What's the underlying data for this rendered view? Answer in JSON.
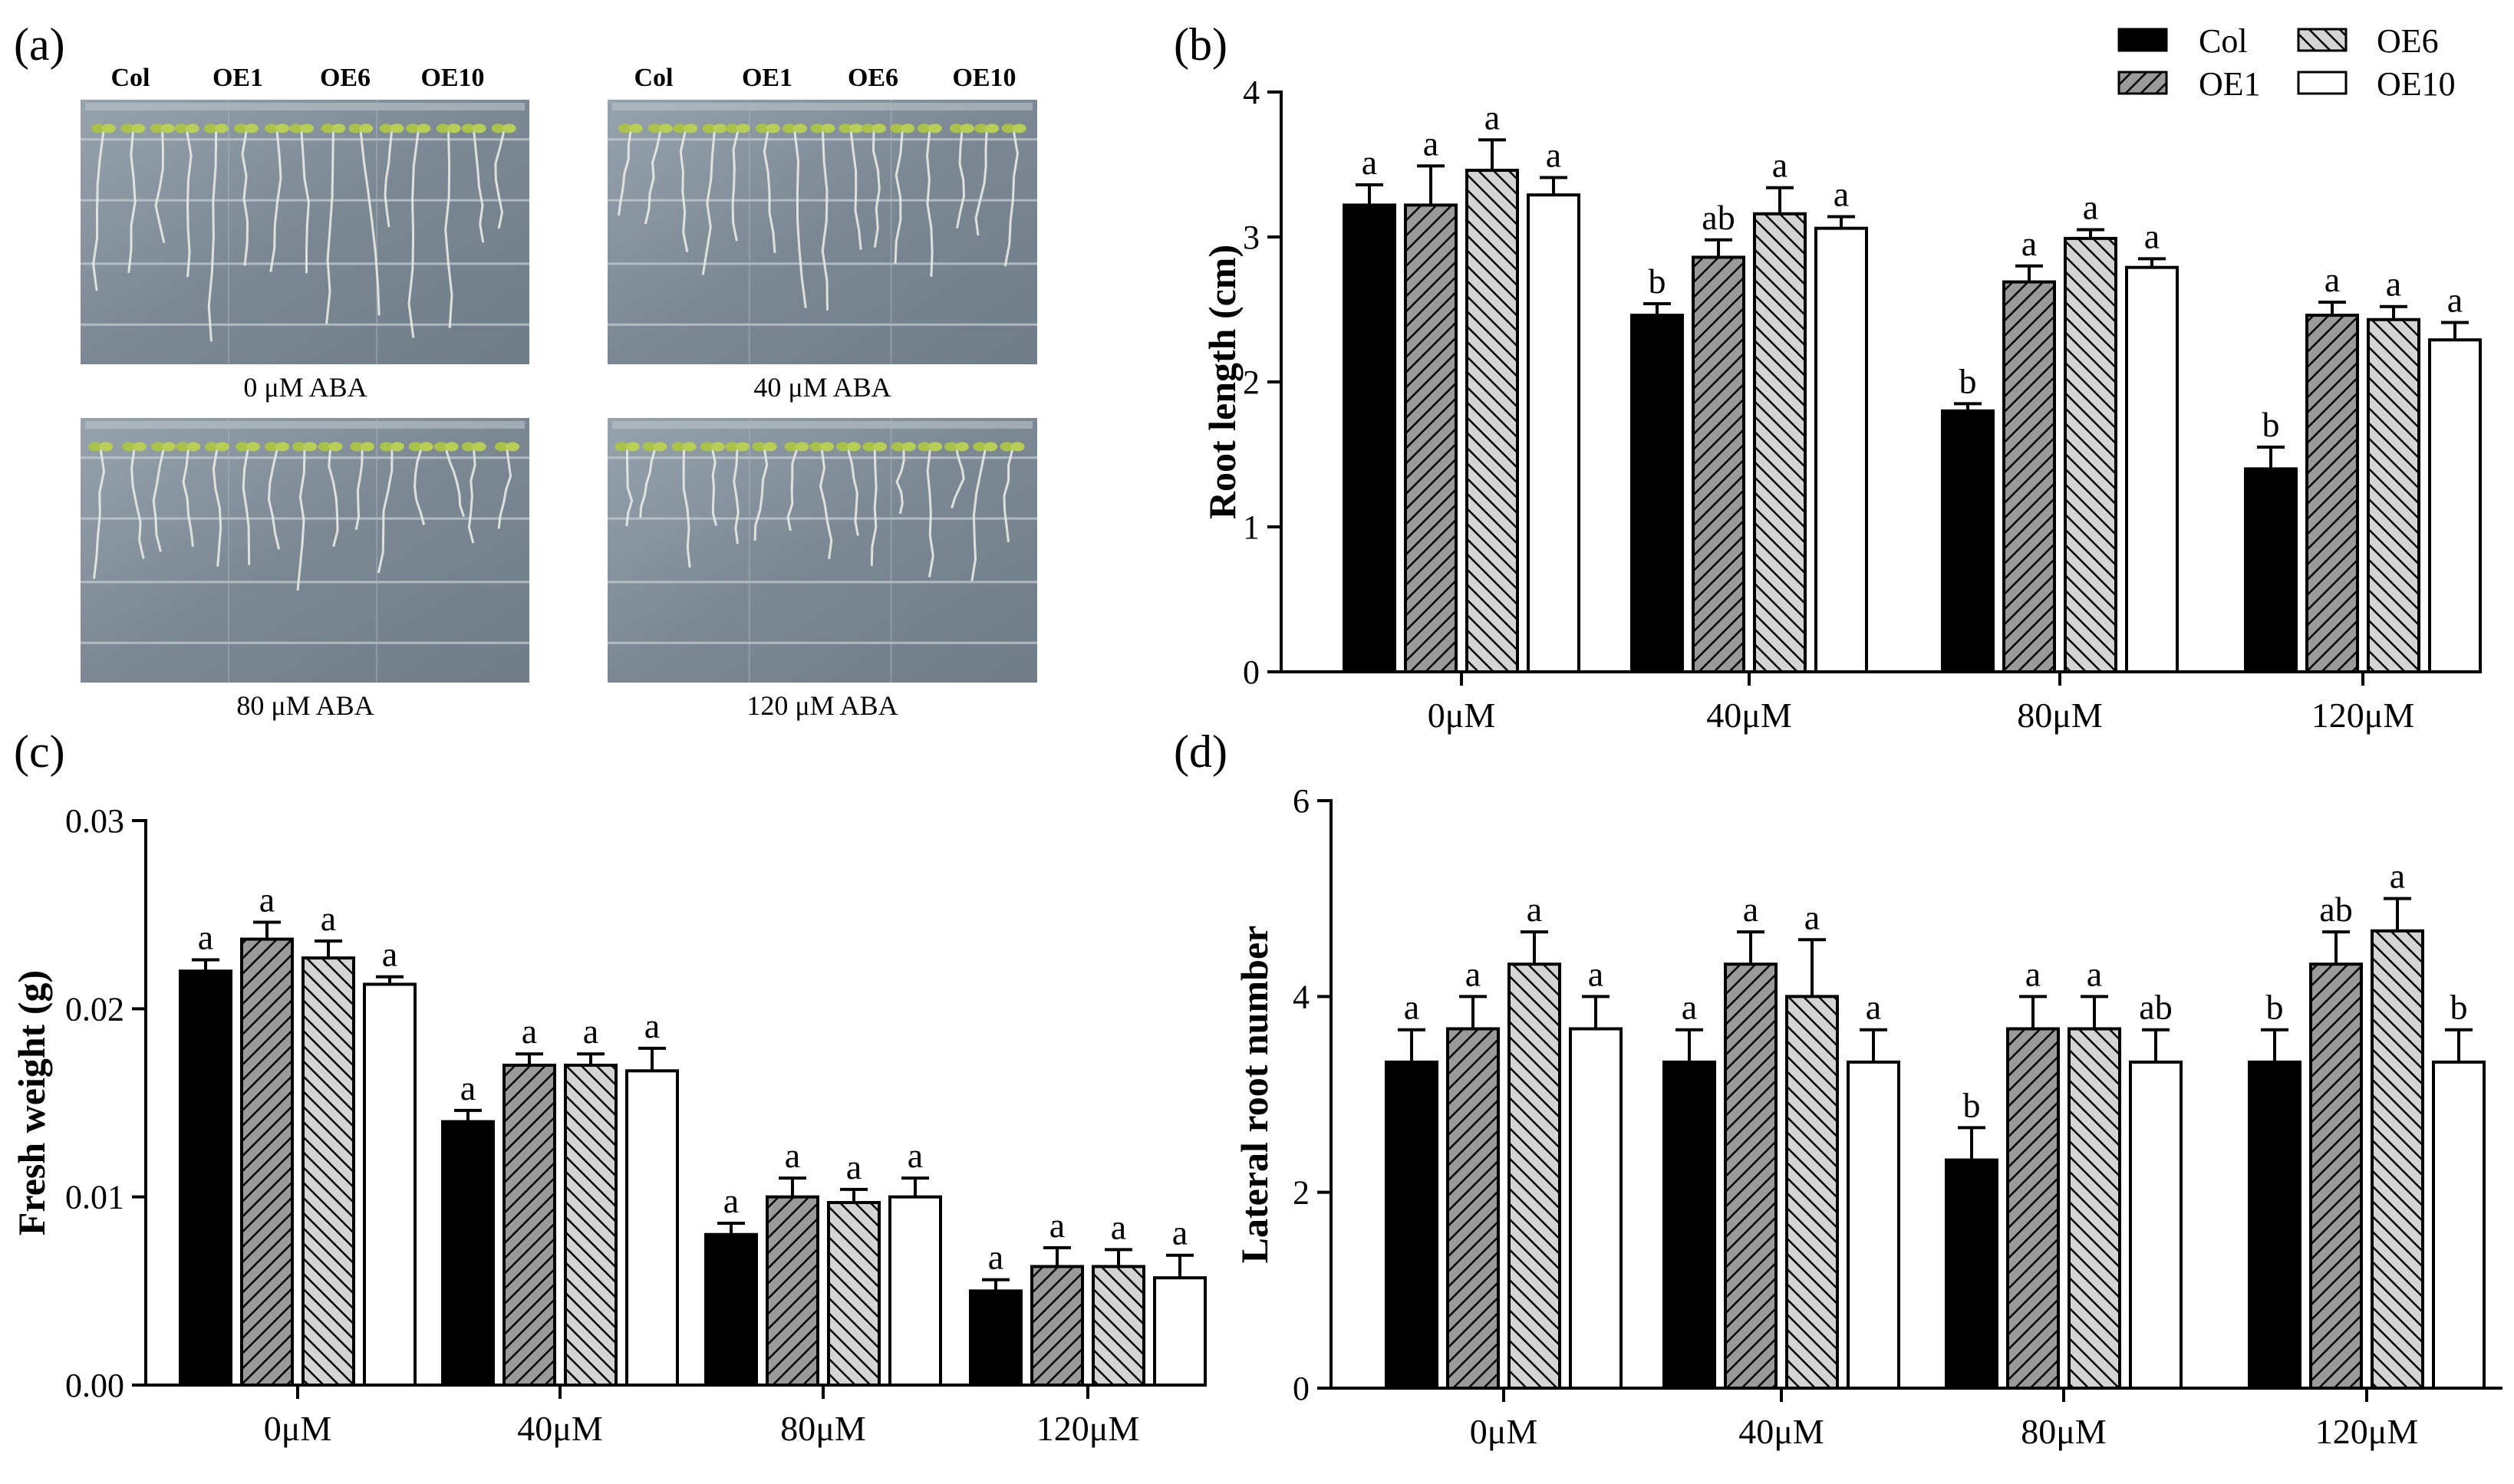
{
  "panels": {
    "a": "(a)",
    "b": "(b)",
    "c": "(c)",
    "d": "(d)"
  },
  "photos": {
    "lane_labels": [
      "Col",
      "OE1",
      "OE6",
      "OE10"
    ],
    "conditions": [
      "0 μM ABA",
      "40 μM ABA",
      "80 μM ABA",
      "120 μM ABA"
    ]
  },
  "legend": {
    "entries": [
      {
        "label": "Col",
        "fill": "#000000"
      },
      {
        "label": "OE1",
        "fill": "hatch-dark"
      },
      {
        "label": "OE6",
        "fill": "hatch-light"
      },
      {
        "label": "OE10",
        "fill": "#ffffff"
      }
    ]
  },
  "colors": {
    "col": "#000000",
    "oe1_bg": "#9a9a9a",
    "oe6_bg": "#d0d0d0",
    "oe10": "#ffffff",
    "plate_bg": "#7c8b96"
  },
  "chart_data": [
    {
      "id": "b",
      "type": "bar",
      "categories": [
        "0μM",
        "40μM",
        "80μM",
        "120μM"
      ],
      "series_names": [
        "Col",
        "OE1",
        "OE6",
        "OE10"
      ],
      "values": [
        [
          3.22,
          3.22,
          3.46,
          3.29
        ],
        [
          2.46,
          2.86,
          3.16,
          3.06
        ],
        [
          1.8,
          2.69,
          2.99,
          2.79
        ],
        [
          1.4,
          2.46,
          2.43,
          2.29
        ]
      ],
      "errors": [
        [
          0.14,
          0.27,
          0.21,
          0.12
        ],
        [
          0.08,
          0.12,
          0.18,
          0.08
        ],
        [
          0.05,
          0.11,
          0.06,
          0.06
        ],
        [
          0.15,
          0.09,
          0.09,
          0.12
        ]
      ],
      "labels": [
        [
          "a",
          "a",
          "a",
          "a"
        ],
        [
          "b",
          "ab",
          "a",
          "a"
        ],
        [
          "b",
          "a",
          "a",
          "a"
        ],
        [
          "b",
          "a",
          "a",
          "a"
        ]
      ],
      "ylabel": "Root length (cm)",
      "ylim": [
        0,
        4
      ],
      "yticks": [
        0,
        1,
        2,
        3,
        4
      ],
      "ytick_labels": [
        "0",
        "1",
        "2",
        "3",
        "4"
      ]
    },
    {
      "id": "c",
      "type": "bar",
      "categories": [
        "0μM",
        "40μM",
        "80μM",
        "120μM"
      ],
      "series_names": [
        "Col",
        "OE1",
        "OE6",
        "OE10"
      ],
      "values": [
        [
          0.022,
          0.0237,
          0.0227,
          0.0213
        ],
        [
          0.014,
          0.017,
          0.017,
          0.0167
        ],
        [
          0.008,
          0.01,
          0.0097,
          0.01
        ],
        [
          0.005,
          0.0063,
          0.0063,
          0.0057
        ]
      ],
      "errors": [
        [
          0.0006,
          0.0009,
          0.0009,
          0.0004
        ],
        [
          0.0006,
          0.0006,
          0.0006,
          0.0012
        ],
        [
          0.0006,
          0.001,
          0.0007,
          0.001
        ],
        [
          0.0006,
          0.001,
          0.0009,
          0.0012
        ]
      ],
      "labels": [
        [
          "a",
          "a",
          "a",
          "a"
        ],
        [
          "a",
          "a",
          "a",
          "a"
        ],
        [
          "a",
          "a",
          "a",
          "a"
        ],
        [
          "a",
          "a",
          "a",
          "a"
        ]
      ],
      "ylabel": "Fresh weight (g)",
      "ylim": [
        0,
        0.03
      ],
      "yticks": [
        0,
        0.01,
        0.02,
        0.03
      ],
      "ytick_labels": [
        "0.00",
        "0.01",
        "0.02",
        "0.03"
      ]
    },
    {
      "id": "d",
      "type": "bar",
      "categories": [
        "0μM",
        "40μM",
        "80μM",
        "120μM"
      ],
      "series_names": [
        "Col",
        "OE1",
        "OE6",
        "OE10"
      ],
      "values": [
        [
          3.33,
          3.67,
          4.33,
          3.67
        ],
        [
          3.33,
          4.33,
          4.0,
          3.33
        ],
        [
          2.33,
          3.67,
          3.67,
          3.33
        ],
        [
          3.33,
          4.33,
          4.67,
          3.33
        ]
      ],
      "errors": [
        [
          0.33,
          0.33,
          0.33,
          0.33
        ],
        [
          0.33,
          0.33,
          0.58,
          0.33
        ],
        [
          0.33,
          0.33,
          0.33,
          0.33
        ],
        [
          0.33,
          0.33,
          0.33,
          0.33
        ]
      ],
      "labels": [
        [
          "a",
          "a",
          "a",
          "a"
        ],
        [
          "a",
          "a",
          "a",
          "a"
        ],
        [
          "b",
          "a",
          "a",
          "ab"
        ],
        [
          "b",
          "ab",
          "a",
          "b"
        ]
      ],
      "ylabel": "Lateral root number",
      "ylim": [
        0,
        6
      ],
      "yticks": [
        0,
        2,
        4,
        6
      ],
      "ytick_labels": [
        "0",
        "2",
        "4",
        "6"
      ]
    }
  ]
}
